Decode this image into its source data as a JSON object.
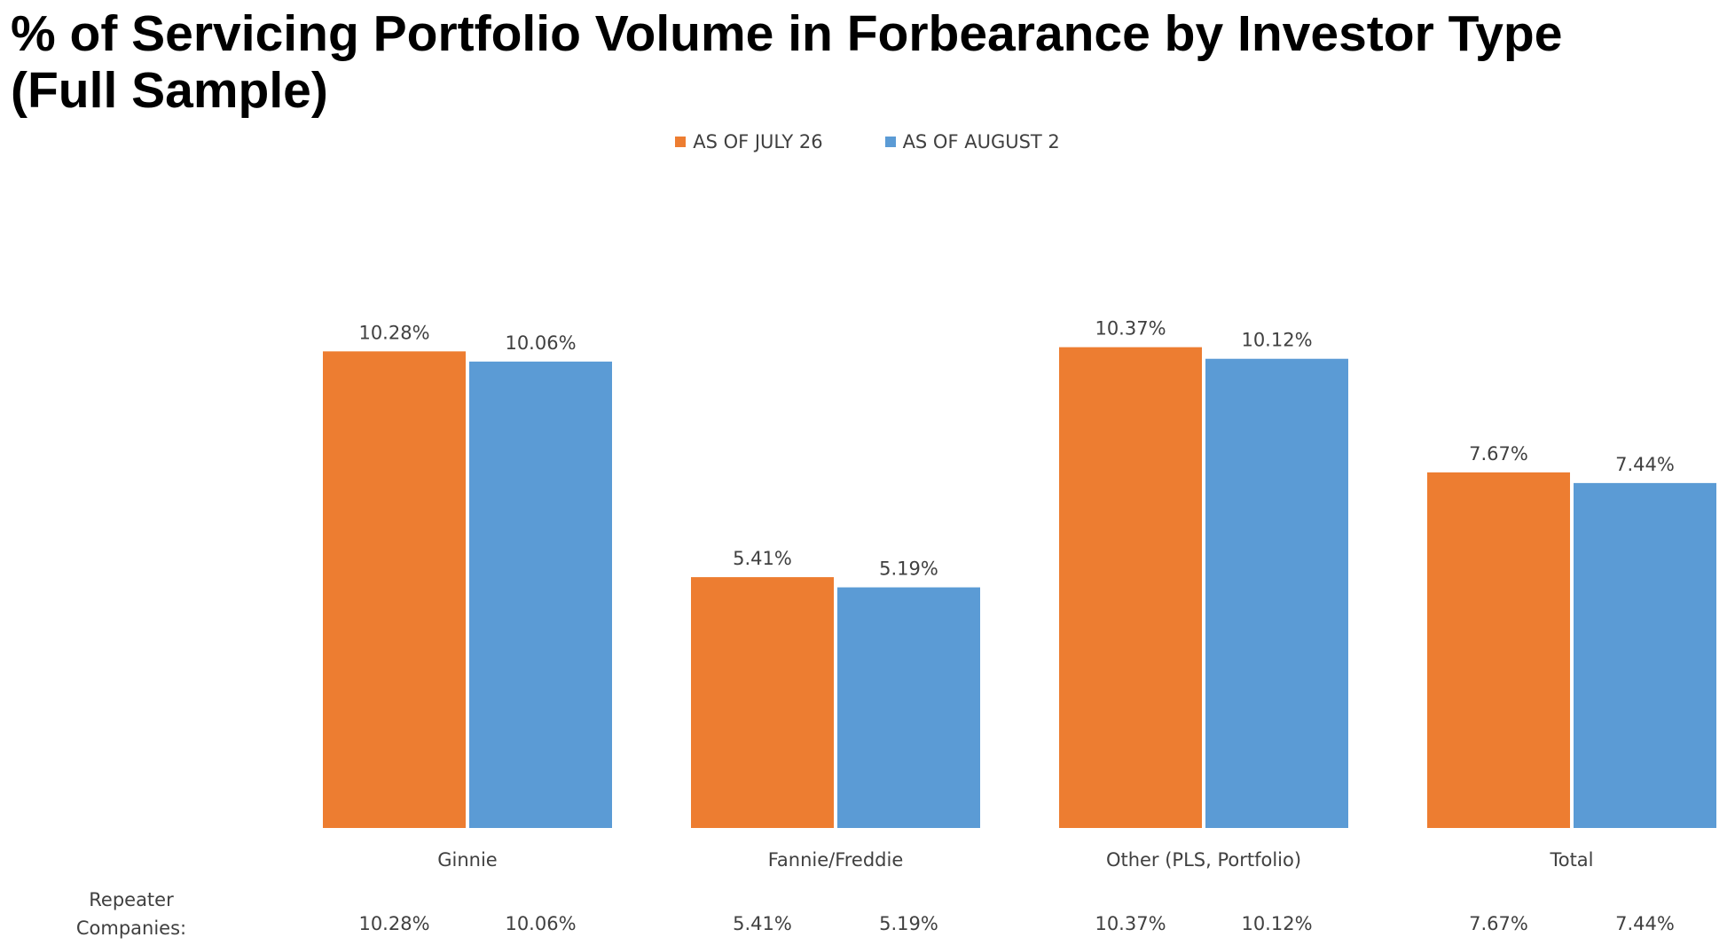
{
  "title_line1": "% of Servicing Portfolio Volume in Forbearance by Investor Type",
  "title_line2": "(Full Sample)",
  "colors": {
    "july": "#ED7D31",
    "august": "#5B9BD5"
  },
  "chart_data": {
    "type": "bar",
    "categories": [
      "Ginnie",
      "Fannie/Freddie",
      "Other (PLS, Portfolio)",
      "Total"
    ],
    "series": [
      {
        "name": "AS OF JULY 26",
        "values": [
          10.28,
          5.41,
          10.37,
          7.67
        ],
        "labels": [
          "10.28%",
          "5.41%",
          "10.37%",
          "7.67%"
        ]
      },
      {
        "name": "AS OF AUGUST 2",
        "values": [
          10.06,
          5.19,
          10.12,
          7.44
        ],
        "labels": [
          "10.06%",
          "5.19%",
          "10.12%",
          "7.44%"
        ]
      }
    ],
    "ylim": [
      0,
      11
    ],
    "legend": "top-center",
    "grid": false,
    "repeater": {
      "label_line1": "Repeater",
      "label_line2": "Companies:",
      "values": [
        [
          "10.28%",
          "10.06%"
        ],
        [
          "5.41%",
          "5.19%"
        ],
        [
          "10.37%",
          "10.12%"
        ],
        [
          "7.67%",
          "7.44%"
        ]
      ]
    }
  }
}
